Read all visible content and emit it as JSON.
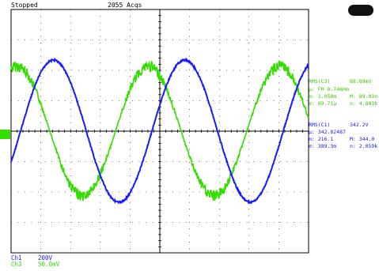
{
  "status": {
    "acquisition": "Stopped",
    "acquisitions_count": "2055 Acqs"
  },
  "channels": [
    {
      "name": "Ch1",
      "scale": "200V",
      "color": "#1a1aff"
    },
    {
      "name": "Ch3",
      "scale": "50.0mV",
      "color": "#33dd00"
    }
  ],
  "measurements": {
    "rms_c3": {
      "label": "RMS(C3)",
      "value": "88.89mV"
    },
    "c3_rows": [
      {
        "a": "μ: FR 8.746Hm",
        "b": ""
      },
      {
        "a": "m: 1.058m",
        "b": "M: 89.03n"
      },
      {
        "a": "σ: 69.71μ",
        "b": "n: 4.803k"
      }
    ],
    "rms_c1": {
      "label": "RMS(C1)",
      "value": "342.2V"
    },
    "c1_rows": [
      {
        "a": "μ: 342.82487",
        "b": ""
      },
      {
        "a": "m: 216.1",
        "b": "M: 344.0"
      },
      {
        "a": "σ: 389.3m",
        "b": "n: 2.059k"
      }
    ]
  },
  "colors": {
    "ch1": "#1a1aff",
    "ch3": "#33dd00",
    "grid": "#000000",
    "trigger_marker": "#33dd00"
  },
  "icons": {
    "run_button": "run-stop-button",
    "trigger_marker": "ch3-ground-marker"
  }
}
